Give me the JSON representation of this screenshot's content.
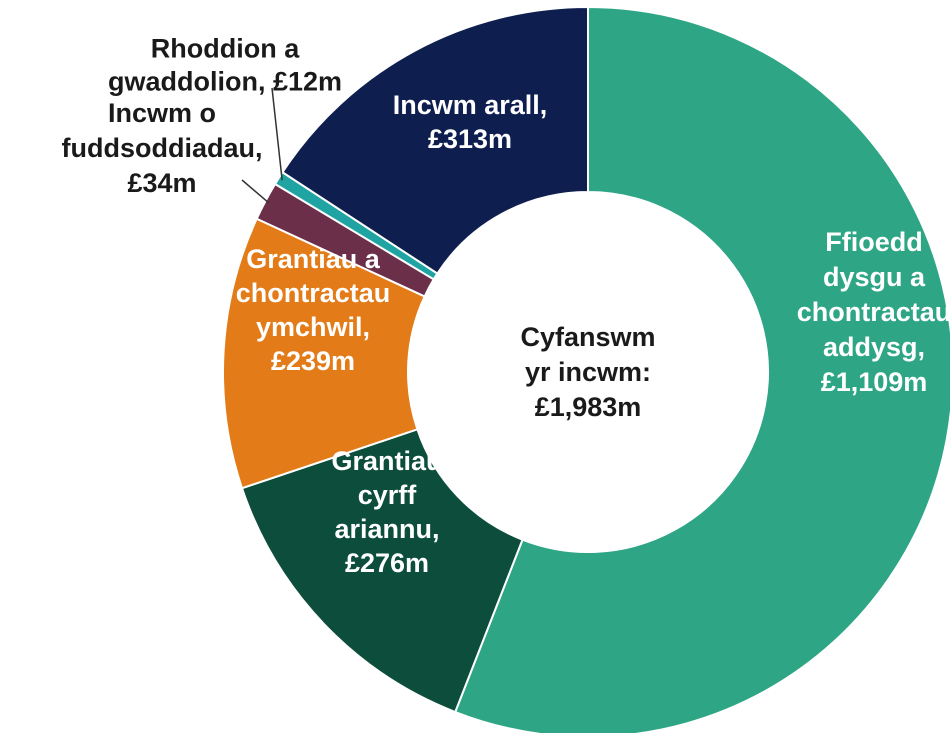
{
  "chart_data": {
    "type": "pie",
    "donut": true,
    "total_unit": "£m",
    "center_label": [
      "Cyfanswm",
      "yr incwm:",
      "£1,983m"
    ],
    "slices": [
      {
        "value": 1109,
        "color": "#2ea686",
        "label_color": "#ffffff",
        "label": [
          "Ffioedd",
          "dysgu a",
          "chontractau",
          "addysg,",
          "£1,109m"
        ]
      },
      {
        "value": 276,
        "color": "#0d4d3c",
        "label_color": "#ffffff",
        "label": [
          "Grantiau",
          "cyrff",
          "ariannu,",
          "£276m"
        ]
      },
      {
        "value": 239,
        "color": "#e37b18",
        "label_color": "#ffffff",
        "label": [
          "Grantiau a",
          "chontractau",
          "ymchwil,",
          "£239m"
        ]
      },
      {
        "value": 34,
        "color": "#6b2f4a",
        "label_color": "#1a1a1a",
        "label": [
          "Incwm o",
          "fuddsoddiadau,",
          "£34m"
        ]
      },
      {
        "value": 12,
        "color": "#1fa3a3",
        "label_color": "#1a1a1a",
        "label": [
          "Rhoddion a",
          "gwaddolion, £12m"
        ]
      },
      {
        "value": 313,
        "color": "#0e1e4f",
        "label_color": "#ffffff",
        "label": [
          "Incwm arall,",
          "£313m"
        ]
      }
    ]
  }
}
